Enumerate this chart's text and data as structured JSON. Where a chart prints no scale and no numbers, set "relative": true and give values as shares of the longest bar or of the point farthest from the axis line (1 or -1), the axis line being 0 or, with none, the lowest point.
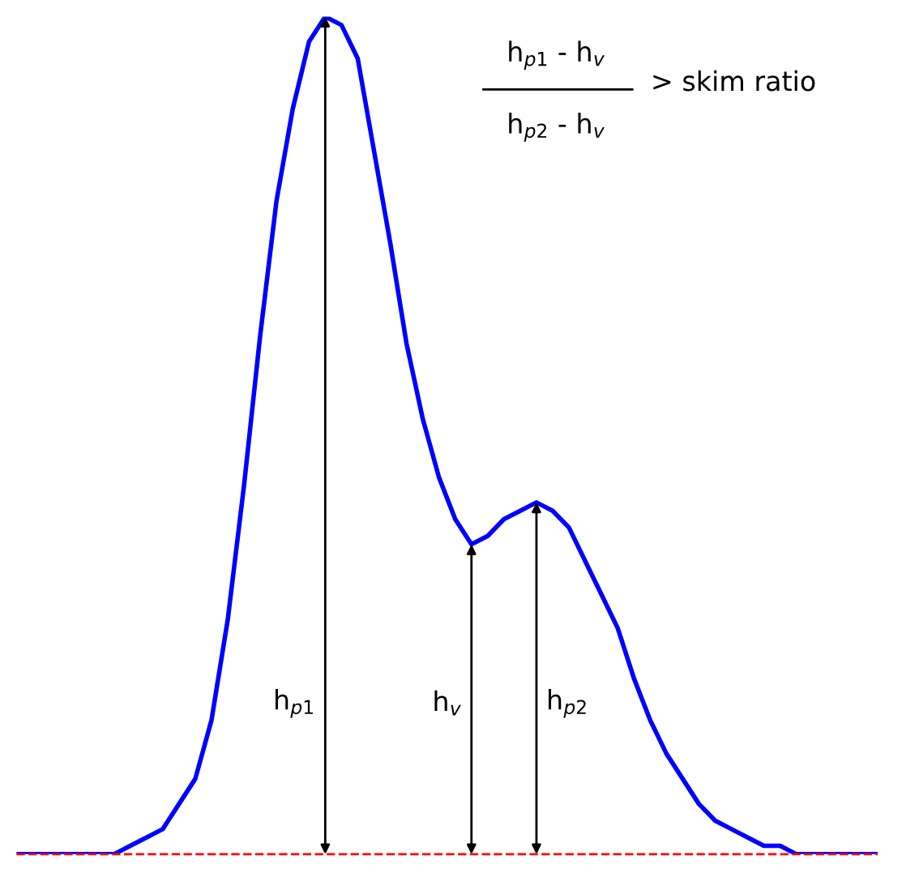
{
  "chart_data": {
    "type": "line",
    "relative": true,
    "marker": "none",
    "line_style": "solid",
    "grid": false,
    "legend": false,
    "categories": [
      null,
      null,
      null,
      null,
      null,
      null,
      null,
      null,
      null,
      null,
      null,
      null,
      null,
      null,
      null,
      null,
      null,
      null,
      null,
      null,
      null,
      null,
      null,
      null,
      null,
      null,
      null,
      null,
      null,
      null,
      null,
      null,
      null,
      null,
      null,
      null,
      null,
      null,
      null,
      null,
      null,
      null,
      null,
      null,
      null,
      null,
      null,
      null,
      null,
      null,
      null,
      null,
      null,
      null
    ],
    "series": [
      {
        "color": "#0000ff",
        "values": [
          0,
          0,
          0,
          0,
          0,
          0,
          0,
          0.01,
          0.02,
          0.03,
          0.06,
          0.09,
          0.16,
          0.28,
          0.44,
          0.62,
          0.78,
          0.89,
          0.97,
          1.0,
          0.99,
          0.95,
          0.84,
          0.73,
          0.61,
          0.52,
          0.45,
          0.4,
          0.37,
          0.38,
          0.4,
          0.41,
          0.42,
          0.41,
          0.39,
          0.35,
          0.31,
          0.27,
          0.21,
          0.16,
          0.12,
          0.09,
          0.06,
          0.04,
          0.03,
          0.02,
          0.01,
          0.01,
          0,
          0,
          0,
          0,
          0,
          0
        ]
      }
    ],
    "ref_lines": [
      {
        "axis": "y",
        "value": 0,
        "color": "#ff0000",
        "line_style": "dashed"
      }
    ],
    "annotations": [
      "h$_{p1}$ - h$_{v}$",
      "h$_{p2}$ - h$_{v}$",
      "> skim ratio",
      "h$_{p1}$",
      "h$_{v}$",
      "h$_{p2}$"
    ]
  }
}
